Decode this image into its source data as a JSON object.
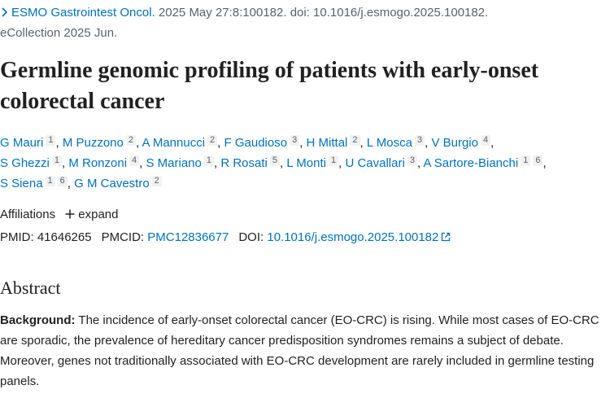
{
  "citation": {
    "journal": "ESMO Gastrointest Oncol.",
    "details": " 2025 May 27:8:100182. doi: 10.1016/j.esmogo.2025.100182.",
    "ecollection": "eCollection 2025 Jun."
  },
  "title": "Germline genomic profiling of patients with early-onset colorectal cancer",
  "authors": [
    {
      "name": "G Mauri",
      "affiliations": [
        1
      ]
    },
    {
      "name": "M Puzzono",
      "affiliations": [
        2
      ]
    },
    {
      "name": "A Mannucci",
      "affiliations": [
        2
      ]
    },
    {
      "name": "F Gaudioso",
      "affiliations": [
        3
      ]
    },
    {
      "name": "H Mittal",
      "affiliations": [
        2
      ]
    },
    {
      "name": "L Mosca",
      "affiliations": [
        3
      ]
    },
    {
      "name": "V Burgio",
      "affiliations": [
        4
      ]
    },
    {
      "name": "S Ghezzi",
      "affiliations": [
        1
      ]
    },
    {
      "name": "M Ronzoni",
      "affiliations": [
        4
      ]
    },
    {
      "name": "S Mariano",
      "affiliations": [
        1
      ]
    },
    {
      "name": "R Rosati",
      "affiliations": [
        5
      ]
    },
    {
      "name": "L Monti",
      "affiliations": [
        1
      ]
    },
    {
      "name": "U Cavallari",
      "affiliations": [
        3
      ]
    },
    {
      "name": "A Sartore-Bianchi",
      "affiliations": [
        1,
        6
      ]
    },
    {
      "name": "S Siena",
      "affiliations": [
        1,
        6
      ]
    },
    {
      "name": "G M Cavestro",
      "affiliations": [
        2
      ]
    }
  ],
  "affiliations": {
    "label": "Affiliations",
    "toggle": "expand"
  },
  "identifiers": [
    {
      "label": "PMID:",
      "value": "41646265"
    },
    {
      "label": "PMCID:",
      "value": "PMC12836677"
    },
    {
      "label": "DOI:",
      "value": "10.1016/j.esmogo.2025.100182"
    }
  ],
  "abstract": {
    "heading": "Abstract",
    "sections": [
      {
        "label": "Background:",
        "text": "The incidence of early-onset colorectal cancer (EO-CRC) is rising. While most cases of EO-CRC are sporadic, the prevalence of hereditary cancer predisposition syndromes remains a subject of debate. Moreover, genes not traditionally associated with EO-CRC development are rarely included in germline testing panels."
      }
    ]
  }
}
